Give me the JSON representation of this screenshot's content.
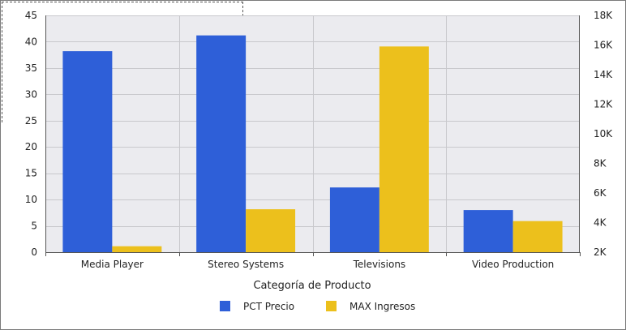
{
  "chart_data": {
    "type": "bar",
    "categories": [
      "Media Player",
      "Stereo Systems",
      "Televisions",
      "Video Production"
    ],
    "series": [
      {
        "name": "PCT Precio",
        "axis": "left",
        "color": "#2e5fd8",
        "values": [
          38.2,
          41.2,
          12.3,
          8.0
        ]
      },
      {
        "name": "MAX Ingresos",
        "axis": "right",
        "color": "#ecc01c",
        "values": [
          2400,
          4900,
          15900,
          4100
        ]
      }
    ],
    "xlabel": "Categoría de Producto",
    "ylim": [
      0,
      45
    ],
    "y_ticks": [
      "0",
      "5",
      "10",
      "15",
      "20",
      "25",
      "30",
      "35",
      "40",
      "45"
    ],
    "y2lim": [
      2000,
      18000
    ],
    "y2_ticks": [
      "2K",
      "4K",
      "6K",
      "8K",
      "10K",
      "12K",
      "14K",
      "16K",
      "18K"
    ],
    "grid": true,
    "legend_position": "bottom-center"
  },
  "colors": {
    "plot_background": "#ebebef",
    "grid": "#c8c8cc"
  }
}
